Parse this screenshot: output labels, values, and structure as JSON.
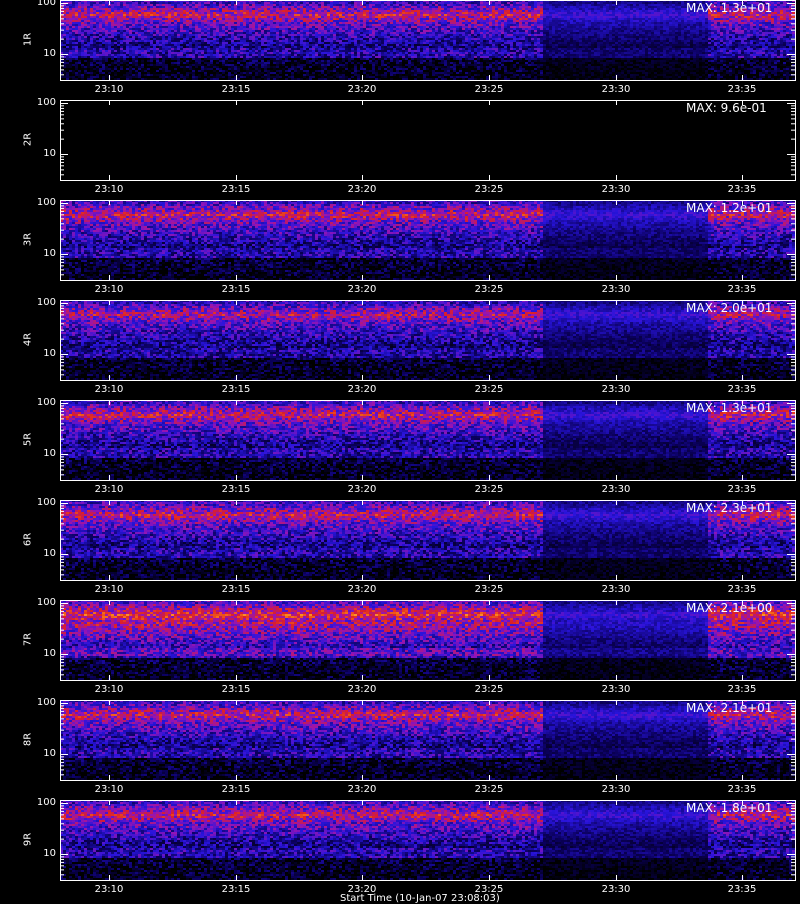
{
  "chart_data": [
    {
      "type": "heatmap",
      "channel": "1R",
      "max_label": "MAX: 1.3e+01",
      "yticks": [
        "100",
        "10"
      ],
      "xticks": [
        "23:10",
        "23:15",
        "23:20",
        "23:25",
        "23:30",
        "23:35"
      ],
      "intensity": 0.85
    },
    {
      "type": "heatmap",
      "channel": "2R",
      "max_label": "MAX: 9.6e-01",
      "yticks": [
        "100",
        "10"
      ],
      "xticks": [
        "23:10",
        "23:15",
        "23:20",
        "23:25",
        "23:30",
        "23:35"
      ],
      "intensity": 0.0
    },
    {
      "type": "heatmap",
      "channel": "3R",
      "max_label": "MAX: 1.2e+01",
      "yticks": [
        "100",
        "10"
      ],
      "xticks": [
        "23:10",
        "23:15",
        "23:20",
        "23:25",
        "23:30",
        "23:35"
      ],
      "intensity": 0.85
    },
    {
      "type": "heatmap",
      "channel": "4R",
      "max_label": "MAX: 2.0e+01",
      "yticks": [
        "100",
        "10"
      ],
      "xticks": [
        "23:10",
        "23:15",
        "23:20",
        "23:25",
        "23:30",
        "23:35"
      ],
      "intensity": 0.8
    },
    {
      "type": "heatmap",
      "channel": "5R",
      "max_label": "MAX: 1.3e+01",
      "yticks": [
        "100",
        "10"
      ],
      "xticks": [
        "23:10",
        "23:15",
        "23:20",
        "23:25",
        "23:30",
        "23:35"
      ],
      "intensity": 0.85
    },
    {
      "type": "heatmap",
      "channel": "6R",
      "max_label": "MAX: 2.3e+01",
      "yticks": [
        "100",
        "10"
      ],
      "xticks": [
        "23:10",
        "23:15",
        "23:20",
        "23:25",
        "23:30",
        "23:35"
      ],
      "intensity": 0.85
    },
    {
      "type": "heatmap",
      "channel": "7R",
      "max_label": "MAX: 2.1e+00",
      "yticks": [
        "100",
        "10"
      ],
      "xticks": [
        "23:10",
        "23:15",
        "23:20",
        "23:25",
        "23:30",
        "23:35"
      ],
      "intensity": 0.95
    },
    {
      "type": "heatmap",
      "channel": "8R",
      "max_label": "MAX: 2.1e+01",
      "yticks": [
        "100",
        "10"
      ],
      "xticks": [
        "23:10",
        "23:15",
        "23:20",
        "23:25",
        "23:30",
        "23:35"
      ],
      "intensity": 0.85
    },
    {
      "type": "heatmap",
      "channel": "9R",
      "max_label": "MAX: 1.8e+01",
      "yticks": [
        "100",
        "10"
      ],
      "xticks": [
        "23:10",
        "23:15",
        "23:20",
        "23:25",
        "23:30",
        "23:35"
      ],
      "intensity": 0.85
    }
  ],
  "footer_text": "Start Time (10-Jan-07 23:08:03)",
  "colors": {
    "background": "#000000",
    "frame": "#ffffff",
    "low": "#1a00c8",
    "mid": "#c01030",
    "high": "#ffe060"
  }
}
